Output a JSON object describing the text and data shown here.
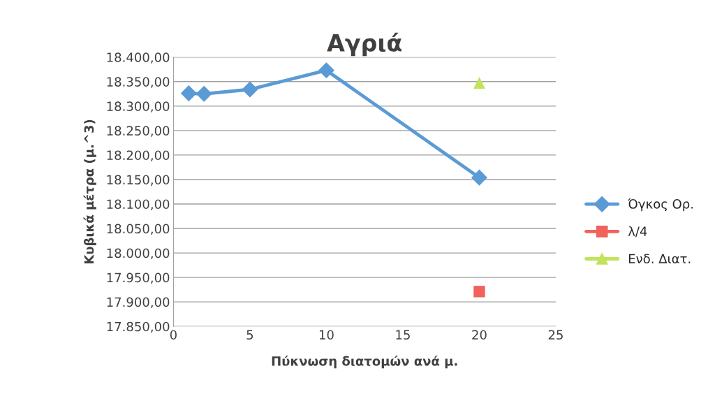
{
  "chart_data": {
    "type": "line",
    "title": "Αγριά",
    "xlabel": "Πύκνωση διατομών ανά μ.",
    "ylabel": "Κυβικά μέτρα (μ.^3)",
    "series": [
      {
        "name": "Όγκος Ορ.",
        "color": "#5b9bd5",
        "marker": "diamond",
        "x": [
          1,
          2,
          5,
          10,
          20
        ],
        "values": [
          18326,
          18325,
          18334,
          18373,
          18154
        ]
      },
      {
        "name": "λ/4",
        "color": "#f0625a",
        "marker": "square",
        "x": [
          20
        ],
        "values": [
          17921
        ]
      },
      {
        "name": "Ενδ. Διατ.",
        "color": "#c2e35a",
        "marker": "triangle",
        "x": [
          20
        ],
        "values": [
          18347
        ]
      }
    ],
    "xlim": [
      0,
      25
    ],
    "xticks": [
      0,
      5,
      10,
      15,
      20,
      25
    ],
    "ylim": [
      17850,
      18400
    ],
    "yticks": [
      {
        "value": 17850,
        "label": "17.850,00"
      },
      {
        "value": 17900,
        "label": "17.900,00"
      },
      {
        "value": 17950,
        "label": "17.950,00"
      },
      {
        "value": 18000,
        "label": "18.000,00"
      },
      {
        "value": 18050,
        "label": "18.050,00"
      },
      {
        "value": 18100,
        "label": "18.100,00"
      },
      {
        "value": 18150,
        "label": "18.150,00"
      },
      {
        "value": 18200,
        "label": "18.200,00"
      },
      {
        "value": 18250,
        "label": "18.250,00"
      },
      {
        "value": 18300,
        "label": "18.300,00"
      },
      {
        "value": 18350,
        "label": "18.350,00"
      },
      {
        "value": 18400,
        "label": "18.400,00"
      }
    ],
    "grid": "y",
    "legend": "right",
    "line_style": "solid"
  }
}
